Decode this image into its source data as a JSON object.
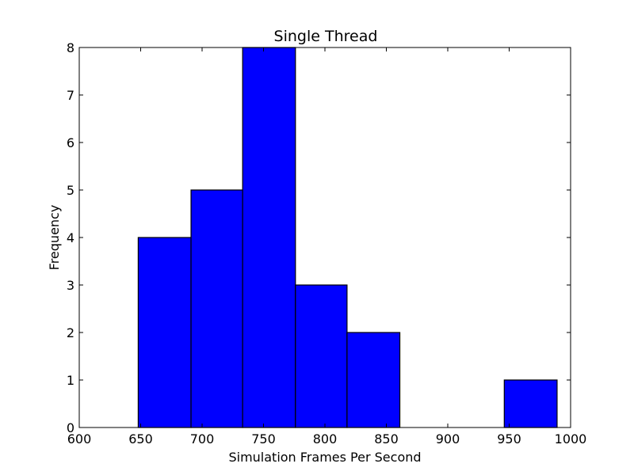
{
  "chart_data": {
    "type": "bar",
    "subtype": "histogram",
    "title": "Single Thread",
    "xlabel": "Simulation Frames Per Second",
    "ylabel": "Frequency",
    "xlim": [
      600,
      1000
    ],
    "ylim": [
      0,
      8
    ],
    "xticks": [
      600,
      650,
      700,
      750,
      800,
      850,
      900,
      950,
      1000
    ],
    "yticks": [
      0,
      1,
      2,
      3,
      4,
      5,
      6,
      7,
      8
    ],
    "bins": [
      {
        "x0": 648,
        "x1": 691,
        "count": 4
      },
      {
        "x0": 691,
        "x1": 733,
        "count": 5
      },
      {
        "x0": 733,
        "x1": 776,
        "count": 8
      },
      {
        "x0": 776,
        "x1": 818,
        "count": 3
      },
      {
        "x0": 818,
        "x1": 861,
        "count": 2
      },
      {
        "x0": 861,
        "x1": 904,
        "count": 0
      },
      {
        "x0": 904,
        "x1": 946,
        "count": 0
      },
      {
        "x0": 946,
        "x1": 989,
        "count": 1
      }
    ],
    "bar_color": "#0000ff",
    "edge_color": "#000000",
    "grid": false,
    "legend": "none"
  }
}
